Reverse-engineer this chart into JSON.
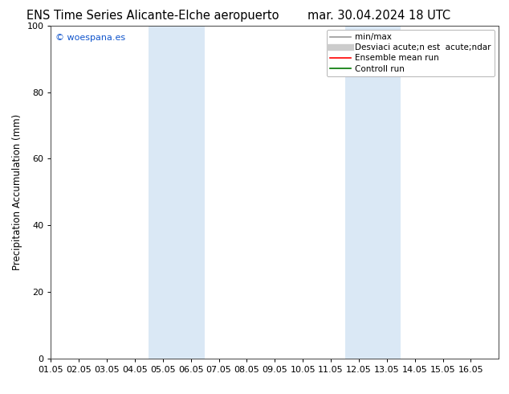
{
  "title_left": "ENS Time Series Alicante-Elche aeropuerto",
  "title_right": "mar. 30.04.2024 18 UTC",
  "ylabel": "Precipitation Accumulation (mm)",
  "ylim": [
    0,
    100
  ],
  "yticks": [
    0,
    20,
    40,
    60,
    80,
    100
  ],
  "xlim": [
    0,
    16
  ],
  "xtick_labels": [
    "01.05",
    "02.05",
    "03.05",
    "04.05",
    "05.05",
    "06.05",
    "07.05",
    "08.05",
    "09.05",
    "10.05",
    "11.05",
    "12.05",
    "13.05",
    "14.05",
    "15.05",
    "16.05"
  ],
  "shaded_regions": [
    {
      "x_start": 3.5,
      "x_end": 5.5,
      "color": "#dae8f5"
    },
    {
      "x_start": 10.5,
      "x_end": 12.5,
      "color": "#dae8f5"
    }
  ],
  "legend_label_1": "min/max",
  "legend_label_2": "Desviaci acute;n est  acute;ndar",
  "legend_label_3": "Ensemble mean run",
  "legend_label_4": "Controll run",
  "legend_color_1": "#999999",
  "legend_color_2": "#cccccc",
  "legend_color_3": "#ff0000",
  "legend_color_4": "#007700",
  "watermark": "© woespana.es",
  "watermark_color": "#1155cc",
  "background_color": "#ffffff",
  "title_fontsize": 10.5,
  "axis_fontsize": 8.5,
  "tick_fontsize": 8,
  "legend_fontsize": 7.5
}
